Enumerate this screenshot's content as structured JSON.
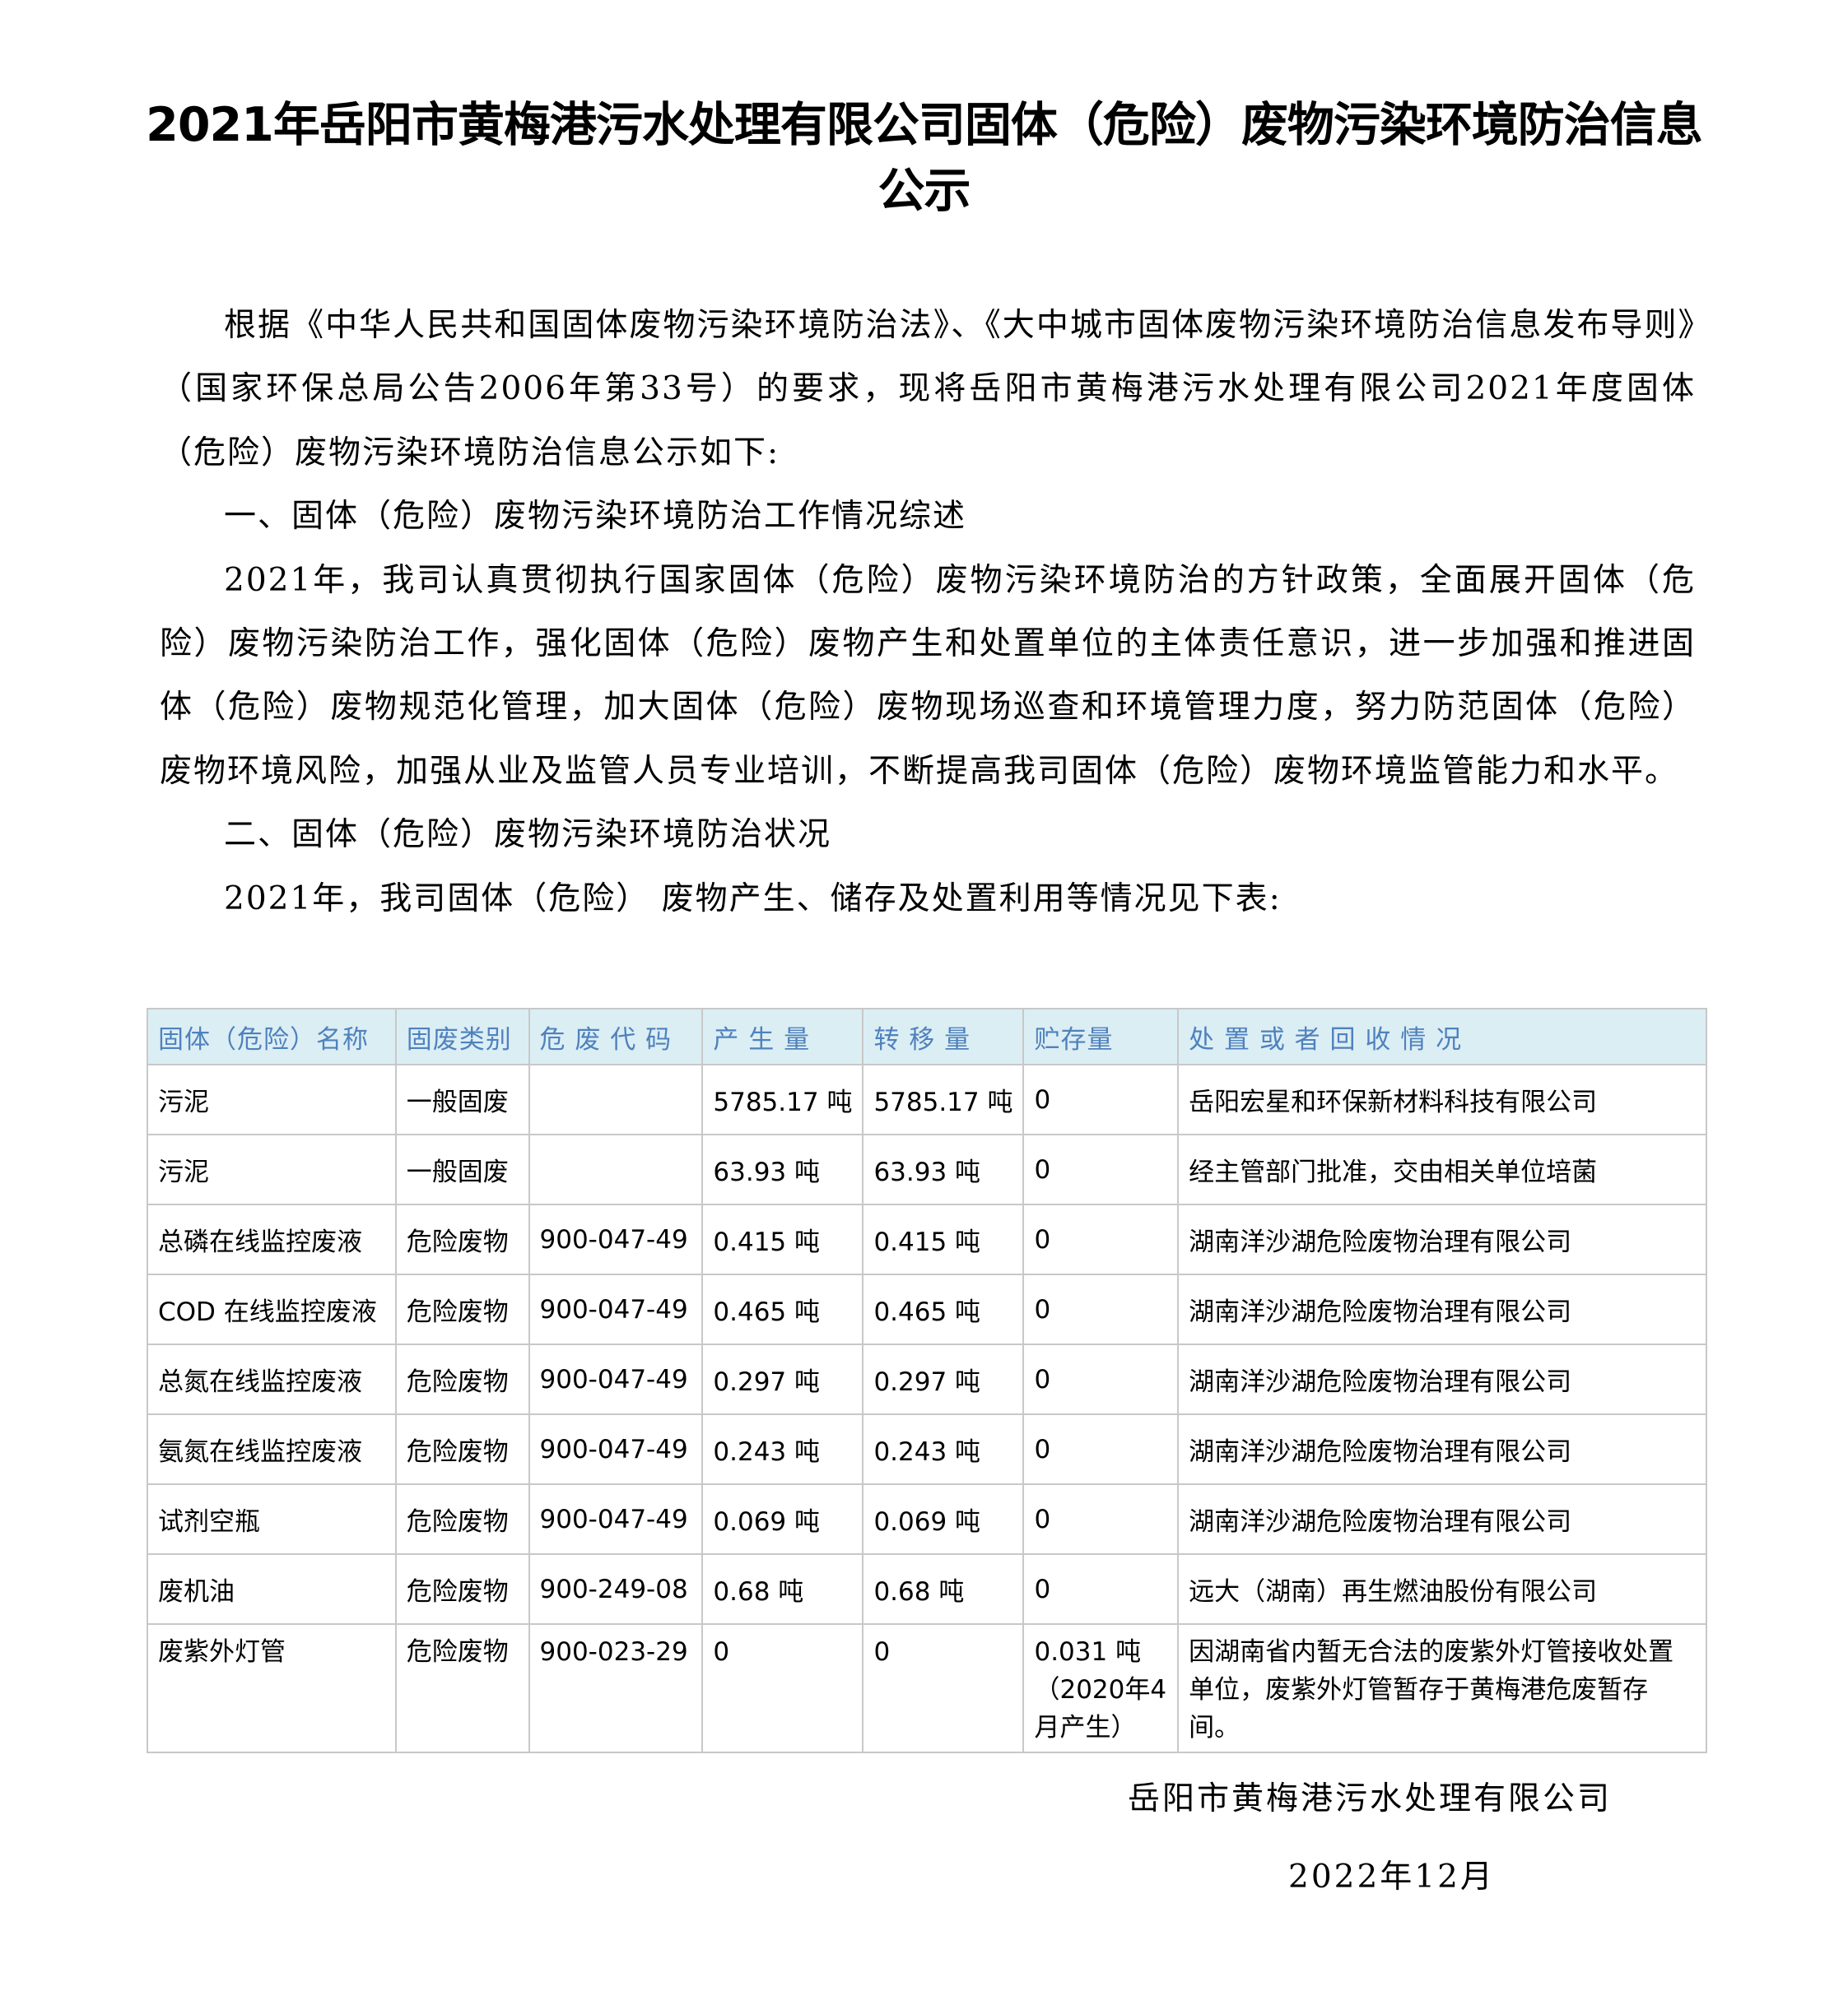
{
  "title": "2021年岳阳市黄梅港污水处理有限公司固体（危险）废物污染环境防治信息公示",
  "paragraphs": [
    "根据《中华人民共和国固体废物污染环境防治法》、《大中城市固体废物污染环境防治信息发布导则》（国家环保总局公告2006年第33号）的要求，现将岳阳市黄梅港污水处理有限公司2021年度固体（危险）废物污染环境防治信息公示如下:",
    "一、固体（危险）废物污染环境防治工作情况综述",
    "2021年，我司认真贯彻执行国家固体（危险）废物污染环境防治的方针政策，全面展开固体（危险）废物污染防治工作，强化固体（危险）废物产生和处置单位的主体责任意识，进一步加强和推进固体（危险）废物规范化管理，加大固体（危险）废物现场巡查和环境管理力度，努力防范固体（危险）废物环境风险，加强从业及监管人员专业培训，不断提高我司固体（危险）废物环境监管能力和水平。",
    "二、固体（危险）废物污染环境防治状况",
    "2021年，我司固体（危险） 废物产生、储存及处置利用等情况见下表:"
  ],
  "table": {
    "headers": [
      "固体（危险）名称",
      "固废类别",
      "危 废 代 码",
      "产 生 量",
      "转 移 量",
      "贮存量",
      "处 置 或 者 回 收 情 况"
    ],
    "rows": [
      [
        "污泥",
        "一般固废",
        "",
        "5785.17 吨",
        "5785.17 吨",
        "0",
        "岳阳宏星和环保新材料科技有限公司"
      ],
      [
        "污泥",
        "一般固废",
        "",
        "63.93 吨",
        "63.93 吨",
        "0",
        "经主管部门批准，交由相关单位培菌"
      ],
      [
        "总磷在线监控废液",
        "危险废物",
        "900-047-49",
        "0.415 吨",
        "0.415 吨",
        "0",
        "湖南洋沙湖危险废物治理有限公司"
      ],
      [
        "COD 在线监控废液",
        "危险废物",
        "900-047-49",
        "0.465 吨",
        "0.465 吨",
        "0",
        "湖南洋沙湖危险废物治理有限公司"
      ],
      [
        "总氮在线监控废液",
        "危险废物",
        "900-047-49",
        "0.297 吨",
        "0.297 吨",
        "0",
        "湖南洋沙湖危险废物治理有限公司"
      ],
      [
        "氨氮在线监控废液",
        "危险废物",
        "900-047-49",
        "0.243 吨",
        "0.243 吨",
        "0",
        "湖南洋沙湖危险废物治理有限公司"
      ],
      [
        "试剂空瓶",
        "危险废物",
        "900-047-49",
        "0.069 吨",
        "0.069 吨",
        "0",
        "湖南洋沙湖危险废物治理有限公司"
      ],
      [
        "废机油",
        "危险废物",
        "900-249-08",
        "0.68 吨",
        "0.68 吨",
        "0",
        "远大（湖南）再生燃油股份有限公司"
      ],
      [
        "废紫外灯管",
        "危险废物",
        "900-023-29",
        "0",
        "0",
        "0.031 吨（2020年4月产生）",
        "因湖南省内暂无合法的废紫外灯管接收处置单位，废紫外灯管暂存于黄梅港危废暂存间。"
      ]
    ]
  },
  "signature": "岳阳市黄梅港污水处理有限公司",
  "date": "2022年12月"
}
